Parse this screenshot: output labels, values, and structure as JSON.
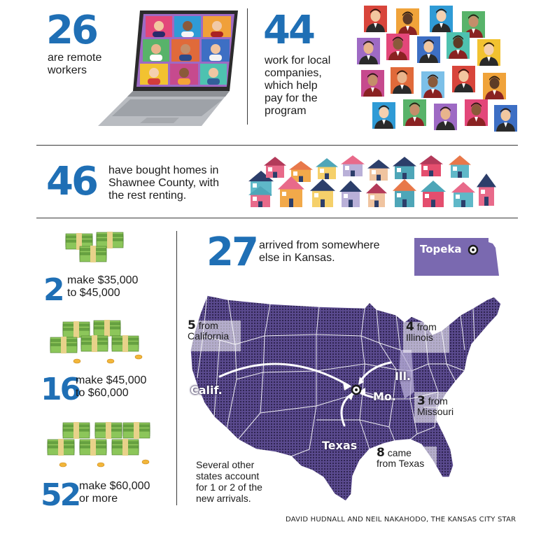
{
  "remote": {
    "number": "26",
    "text_line1": "are remote",
    "text_line2": "workers"
  },
  "local": {
    "number": "44",
    "lines": [
      "work for local",
      "companies,",
      "which help",
      "pay for the",
      "program"
    ]
  },
  "homes": {
    "number": "46",
    "lines": [
      "have bought homes in",
      "Shawnee County, with",
      "the rest renting."
    ]
  },
  "income": [
    {
      "number": "2",
      "lines": [
        "make $35,000",
        "to $45,000"
      ]
    },
    {
      "number": "16",
      "lines": [
        "make $45,000",
        "to $60,000"
      ]
    },
    {
      "number": "52",
      "lines": [
        "make $60,000",
        "or more"
      ]
    }
  ],
  "kansas": {
    "number": "27",
    "lines": [
      "arrived from somewhere",
      "else in Kansas."
    ],
    "badge": "Topeka"
  },
  "map": {
    "california": {
      "num": "5",
      "from": "from",
      "state": "California",
      "short": "Calif."
    },
    "illinois": {
      "num": "4",
      "from": "from",
      "state": "Illinois",
      "short": "Ill."
    },
    "missouri": {
      "num": "3",
      "from": "from",
      "state": "Missouri",
      "short": "Mo."
    },
    "texas": {
      "num": "8",
      "from": "came",
      "state": "from Texas",
      "short": "Texas"
    }
  },
  "note_lines": [
    "Several other",
    "states account",
    "for 1 or 2 of the",
    "new arrivals."
  ],
  "credit": "DAVID HUDNALL AND NEIL NAKAHODO, THE KANSAS CITY STAR",
  "colors": {
    "accent": "#1f6fb5",
    "map_dark": "#3d2f6b",
    "map_mid": "#7a69b0",
    "map_light": "#b9b0d8"
  }
}
